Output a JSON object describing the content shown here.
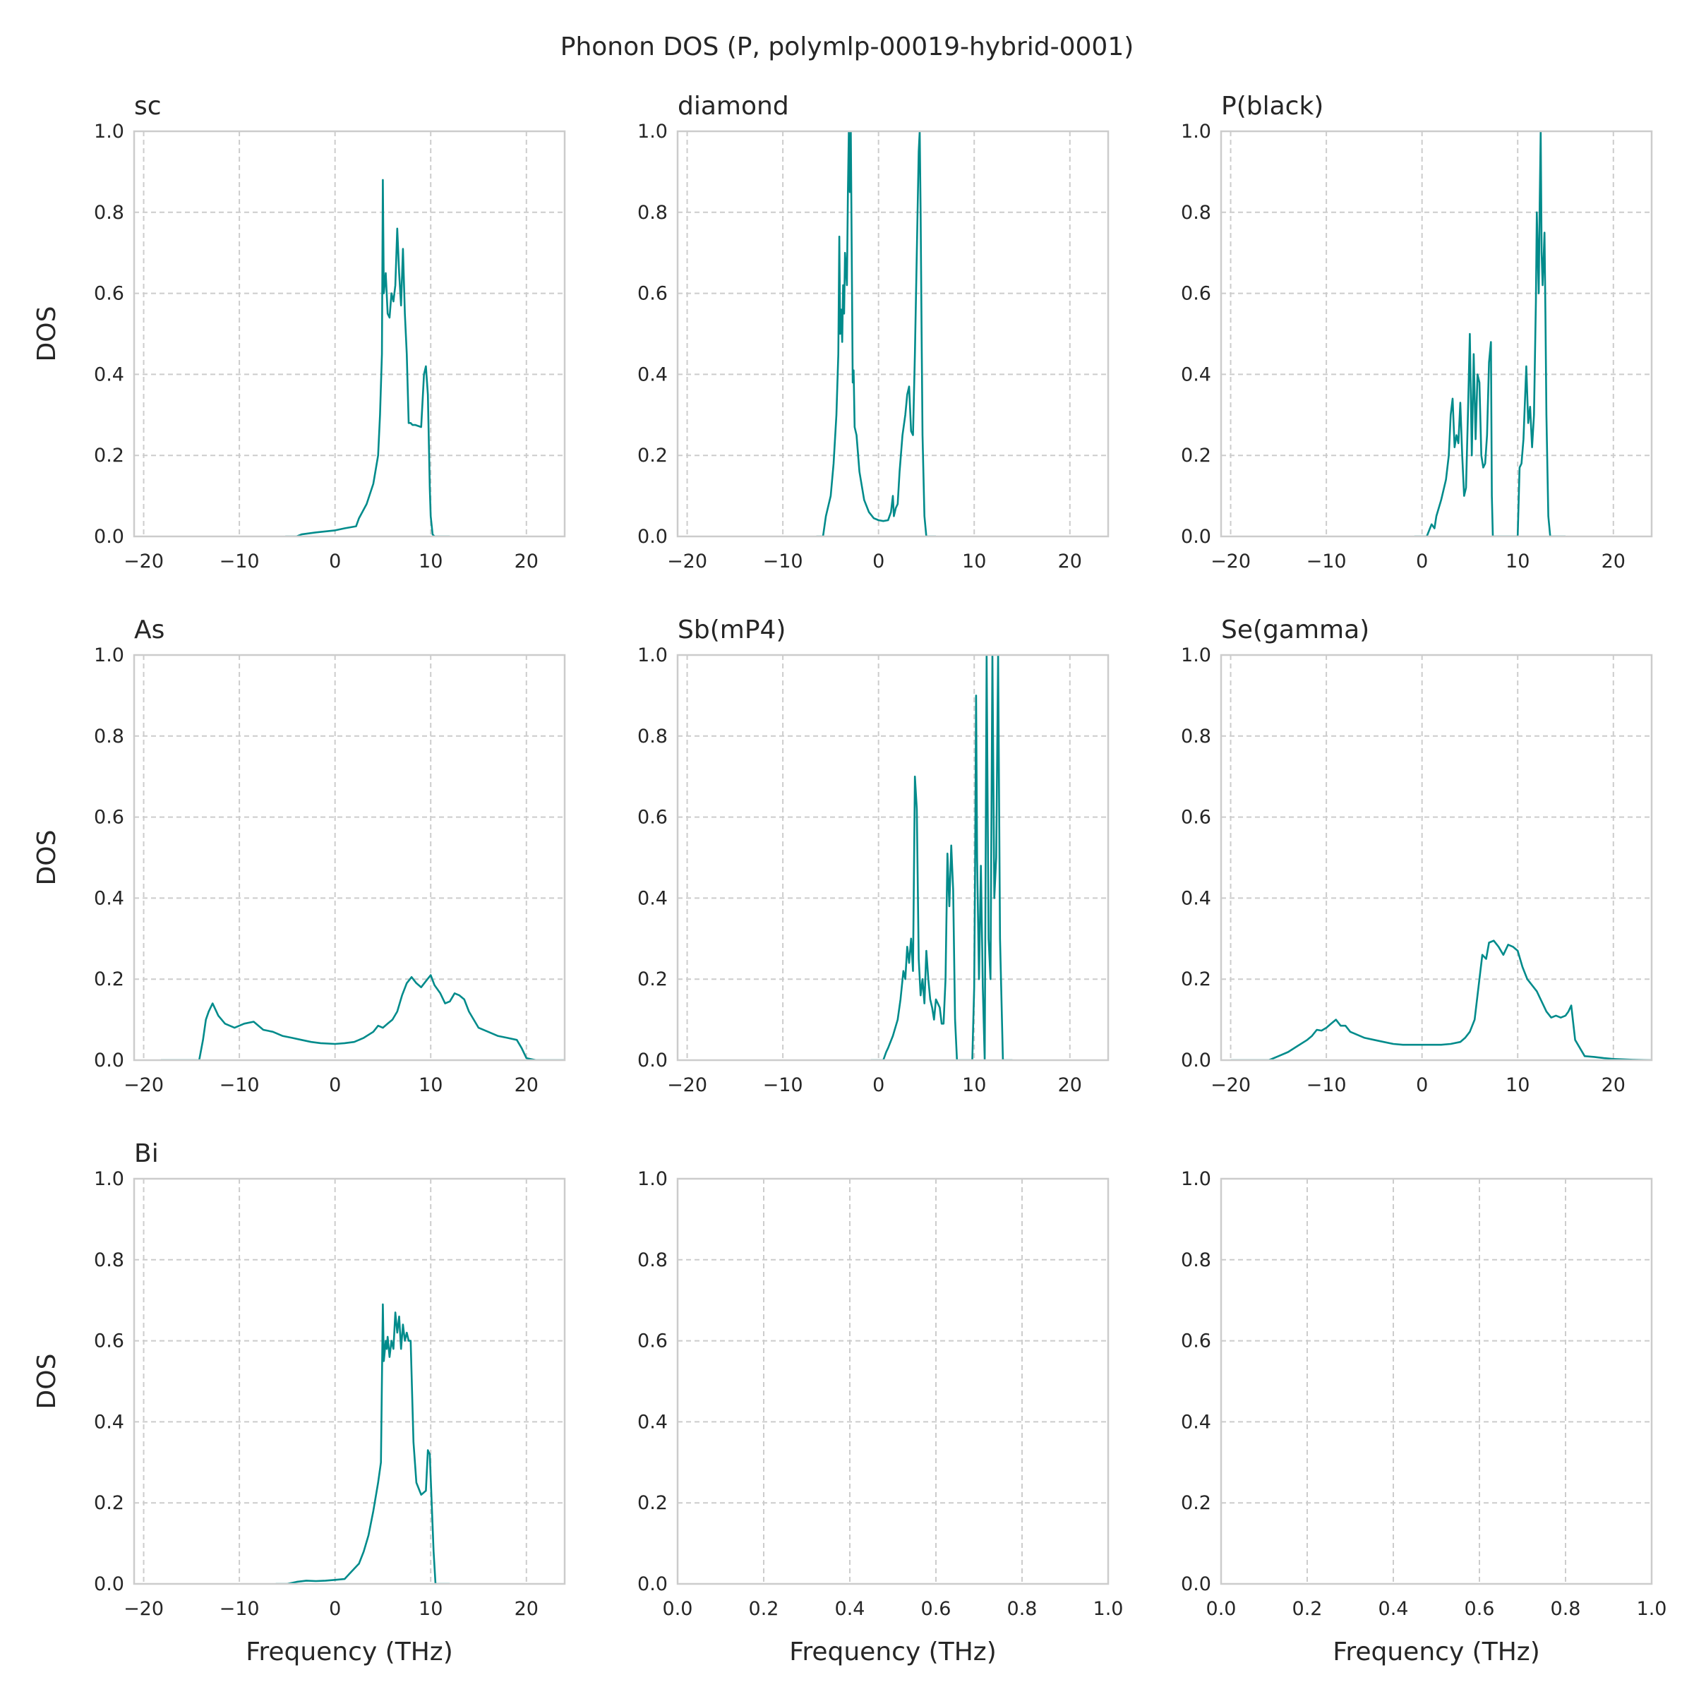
{
  "figure": {
    "title": "Phonon DOS (P, polymlp-00019-hybrid-0001)",
    "line_color": "#008b8b",
    "grid_color": "#cccccc",
    "frame_color": "#cccccc"
  },
  "chart_data": [
    {
      "type": "line",
      "title": "sc",
      "xlabel": "",
      "ylabel": "DOS",
      "xlim": [
        -21,
        24
      ],
      "ylim": [
        0,
        1.0
      ],
      "xticks": [
        -20,
        -10,
        0,
        10,
        20
      ],
      "yticks": [
        0.0,
        0.2,
        0.4,
        0.6,
        0.8,
        1.0
      ],
      "xtick_labels": [
        "−20",
        "−10",
        "0",
        "10",
        "20"
      ],
      "ytick_labels": [
        "0.0",
        "0.2",
        "0.4",
        "0.6",
        "0.8",
        "1.0"
      ],
      "grid": true,
      "series": [
        {
          "x": [
            -5.2,
            -4,
            -3.5,
            -2,
            0,
            1,
            2.2,
            2.5,
            3.3,
            4,
            4.5,
            4.7,
            4.9,
            5.0,
            5.1,
            5.3,
            5.5,
            5.7,
            5.9,
            6.1,
            6.3,
            6.5,
            6.7,
            6.9,
            7.1,
            7.3,
            7.5,
            7.7,
            7.9,
            8.1,
            8.4,
            9.0,
            9.3,
            9.5,
            9.7,
            9.9,
            10.0,
            10.2,
            10.4,
            12.0
          ],
          "y": [
            0.0,
            0.0,
            0.005,
            0.01,
            0.015,
            0.02,
            0.025,
            0.045,
            0.08,
            0.13,
            0.2,
            0.3,
            0.45,
            0.88,
            0.6,
            0.65,
            0.55,
            0.54,
            0.6,
            0.58,
            0.62,
            0.76,
            0.65,
            0.57,
            0.71,
            0.55,
            0.45,
            0.28,
            0.28,
            0.275,
            0.275,
            0.27,
            0.4,
            0.42,
            0.35,
            0.12,
            0.05,
            0.005,
            0.0,
            0.0
          ]
        }
      ]
    },
    {
      "type": "line",
      "title": "diamond",
      "xlabel": "",
      "ylabel": "",
      "xlim": [
        -21,
        24
      ],
      "ylim": [
        0,
        1.0
      ],
      "xticks": [
        -20,
        -10,
        0,
        10,
        20
      ],
      "yticks": [
        0.0,
        0.2,
        0.4,
        0.6,
        0.8,
        1.0
      ],
      "xtick_labels": [
        "−20",
        "−10",
        "0",
        "10",
        "20"
      ],
      "ytick_labels": [
        "0.0",
        "0.2",
        "0.4",
        "0.6",
        "0.8",
        "1.0"
      ],
      "grid": true,
      "series": [
        {
          "x": [
            -6.5,
            -5.8,
            -5.5,
            -5,
            -4.7,
            -4.4,
            -4.2,
            -4.1,
            -4.0,
            -3.9,
            -3.8,
            -3.7,
            -3.6,
            -3.5,
            -3.3,
            -3.2,
            -3.1,
            -3.0,
            -2.9,
            -2.8,
            -2.7,
            -2.6,
            -2.5,
            -2.3,
            -2.0,
            -1.5,
            -1,
            -0.5,
            0,
            0.5,
            1.0,
            1.3,
            1.5,
            1.6,
            1.8,
            2.0,
            2.2,
            2.5,
            2.8,
            3.0,
            3.2,
            3.4,
            3.6,
            3.8,
            4.0,
            4.2,
            4.3,
            4.4,
            4.5,
            4.6,
            4.8,
            5.0,
            5.3,
            6.0
          ],
          "y": [
            0.0,
            0.0,
            0.05,
            0.1,
            0.18,
            0.3,
            0.45,
            0.74,
            0.5,
            0.56,
            0.48,
            0.62,
            0.55,
            0.7,
            0.62,
            0.85,
            1.0,
            0.85,
            1.0,
            0.7,
            0.38,
            0.41,
            0.27,
            0.25,
            0.16,
            0.09,
            0.06,
            0.045,
            0.04,
            0.038,
            0.04,
            0.06,
            0.1,
            0.05,
            0.07,
            0.08,
            0.16,
            0.25,
            0.3,
            0.35,
            0.37,
            0.26,
            0.25,
            0.45,
            0.7,
            0.95,
            1.0,
            0.8,
            0.5,
            0.25,
            0.05,
            0.0,
            0.0,
            0.0
          ]
        }
      ]
    },
    {
      "type": "line",
      "title": "P(black)",
      "xlabel": "",
      "ylabel": "",
      "xlim": [
        -21,
        24
      ],
      "ylim": [
        0,
        1.0
      ],
      "xticks": [
        -20,
        -10,
        0,
        10,
        20
      ],
      "yticks": [
        0.0,
        0.2,
        0.4,
        0.6,
        0.8,
        1.0
      ],
      "xtick_labels": [
        "−20",
        "−10",
        "0",
        "10",
        "20"
      ],
      "ytick_labels": [
        "0.0",
        "0.2",
        "0.4",
        "0.6",
        "0.8",
        "1.0"
      ],
      "grid": true,
      "series": [
        {
          "x": [
            -0.8,
            0.5,
            1.0,
            1.3,
            1.5,
            2.0,
            2.5,
            2.8,
            3.0,
            3.2,
            3.4,
            3.6,
            3.8,
            4.0,
            4.2,
            4.4,
            4.6,
            4.8,
            5.0,
            5.2,
            5.4,
            5.6,
            5.8,
            6.0,
            6.2,
            6.4,
            6.6,
            6.8,
            7.0,
            7.2,
            7.3,
            7.4,
            7.6,
            8.0,
            10.0,
            10.2,
            10.4,
            10.6,
            10.9,
            11.1,
            11.3,
            11.5,
            11.7,
            11.9,
            12.0,
            12.2,
            12.3,
            12.4,
            12.5,
            12.6,
            12.7,
            12.8,
            12.9,
            13.0,
            13.2,
            13.4,
            14.0,
            15.0
          ],
          "y": [
            0.0,
            0.0,
            0.03,
            0.02,
            0.05,
            0.09,
            0.14,
            0.2,
            0.3,
            0.34,
            0.22,
            0.25,
            0.23,
            0.33,
            0.2,
            0.1,
            0.12,
            0.3,
            0.5,
            0.2,
            0.45,
            0.24,
            0.4,
            0.38,
            0.2,
            0.17,
            0.18,
            0.25,
            0.43,
            0.48,
            0.1,
            0.0,
            0.0,
            0.0,
            0.0,
            0.17,
            0.18,
            0.24,
            0.42,
            0.28,
            0.32,
            0.22,
            0.3,
            0.58,
            0.8,
            0.6,
            0.82,
            1.0,
            0.7,
            0.62,
            0.68,
            0.75,
            0.55,
            0.3,
            0.05,
            0.0,
            0.0,
            0.0
          ]
        }
      ]
    },
    {
      "type": "line",
      "title": "As",
      "xlabel": "",
      "ylabel": "DOS",
      "xlim": [
        -21,
        24
      ],
      "ylim": [
        0,
        1.0
      ],
      "xticks": [
        -20,
        -10,
        0,
        10,
        20
      ],
      "yticks": [
        0.0,
        0.2,
        0.4,
        0.6,
        0.8,
        1.0
      ],
      "xtick_labels": [
        "−20",
        "−10",
        "0",
        "10",
        "20"
      ],
      "ytick_labels": [
        "0.0",
        "0.2",
        "0.4",
        "0.6",
        "0.8",
        "1.0"
      ],
      "grid": true,
      "series": [
        {
          "x": [
            -18.2,
            -14.2,
            -13.8,
            -13.5,
            -13.2,
            -12.8,
            -12.2,
            -11.5,
            -10.5,
            -9.5,
            -8.5,
            -7.5,
            -6.5,
            -5.5,
            -4.5,
            -3.5,
            -2.5,
            -1.5,
            0,
            1,
            2,
            3,
            4,
            4.5,
            5,
            5.5,
            6,
            6.5,
            7,
            7.5,
            8,
            8.5,
            9,
            9.5,
            10,
            10.4,
            11,
            11.5,
            12,
            12.5,
            13,
            13.5,
            14,
            14.5,
            15,
            16,
            17,
            18,
            19,
            19.5,
            20,
            21,
            24
          ],
          "y": [
            0.0,
            0.0,
            0.05,
            0.1,
            0.12,
            0.14,
            0.11,
            0.09,
            0.08,
            0.09,
            0.095,
            0.075,
            0.07,
            0.06,
            0.055,
            0.05,
            0.045,
            0.042,
            0.04,
            0.042,
            0.045,
            0.055,
            0.07,
            0.085,
            0.08,
            0.09,
            0.1,
            0.12,
            0.16,
            0.19,
            0.205,
            0.19,
            0.18,
            0.195,
            0.21,
            0.185,
            0.165,
            0.14,
            0.145,
            0.165,
            0.16,
            0.15,
            0.12,
            0.1,
            0.08,
            0.07,
            0.06,
            0.055,
            0.05,
            0.03,
            0.005,
            0.0,
            0.0
          ]
        }
      ]
    },
    {
      "type": "line",
      "title": "Sb(mP4)",
      "xlabel": "",
      "ylabel": "",
      "xlim": [
        -21,
        24
      ],
      "ylim": [
        0,
        1.0
      ],
      "xticks": [
        -20,
        -10,
        0,
        10,
        20
      ],
      "yticks": [
        0.0,
        0.2,
        0.4,
        0.6,
        0.8,
        1.0
      ],
      "xtick_labels": [
        "−20",
        "−10",
        "0",
        "10",
        "20"
      ],
      "ytick_labels": [
        "0.0",
        "0.2",
        "0.4",
        "0.6",
        "0.8",
        "1.0"
      ],
      "grid": true,
      "series": [
        {
          "x": [
            -0.8,
            0.5,
            0.8,
            1.0,
            1.5,
            2.0,
            2.3,
            2.6,
            2.8,
            3.0,
            3.2,
            3.4,
            3.6,
            3.8,
            4.0,
            4.2,
            4.4,
            4.6,
            4.8,
            5.0,
            5.2,
            5.4,
            5.6,
            5.8,
            6.0,
            6.2,
            6.4,
            6.6,
            6.8,
            7.0,
            7.2,
            7.4,
            7.6,
            7.8,
            8.0,
            8.2,
            9.8,
            10.0,
            10.1,
            10.2,
            10.3,
            10.5,
            10.7,
            10.9,
            11.1,
            11.3,
            11.5,
            11.7,
            11.9,
            12.1,
            12.3,
            12.5,
            12.7,
            13.0,
            14.0
          ],
          "y": [
            0.0,
            0.0,
            0.02,
            0.03,
            0.06,
            0.1,
            0.15,
            0.22,
            0.2,
            0.28,
            0.24,
            0.3,
            0.22,
            0.7,
            0.62,
            0.25,
            0.16,
            0.2,
            0.14,
            0.27,
            0.2,
            0.15,
            0.13,
            0.1,
            0.15,
            0.14,
            0.13,
            0.09,
            0.09,
            0.2,
            0.51,
            0.38,
            0.53,
            0.42,
            0.1,
            0.0,
            0.0,
            0.18,
            0.5,
            0.9,
            0.5,
            0.2,
            0.48,
            0.18,
            0.0,
            1.0,
            0.3,
            0.2,
            1.0,
            0.4,
            0.5,
            1.0,
            0.3,
            0.0,
            0.0
          ]
        }
      ]
    },
    {
      "type": "line",
      "title": "Se(gamma)",
      "xlabel": "",
      "ylabel": "",
      "xlim": [
        -21,
        24
      ],
      "ylim": [
        0,
        1.0
      ],
      "xticks": [
        -20,
        -10,
        0,
        10,
        20
      ],
      "yticks": [
        0.0,
        0.2,
        0.4,
        0.6,
        0.8,
        1.0
      ],
      "xtick_labels": [
        "−20",
        "−10",
        "0",
        "10",
        "20"
      ],
      "ytick_labels": [
        "0.0",
        "0.2",
        "0.4",
        "0.6",
        "0.8",
        "1.0"
      ],
      "grid": true,
      "series": [
        {
          "x": [
            -20,
            -16,
            -15,
            -14,
            -13,
            -12,
            -11.5,
            -11,
            -10.5,
            -10,
            -9.5,
            -9,
            -8.5,
            -8,
            -7.5,
            -7,
            -6,
            -5,
            -4,
            -3,
            -2,
            -1,
            0,
            1,
            2,
            3,
            4,
            4.5,
            5,
            5.5,
            6,
            6.3,
            6.7,
            7,
            7.5,
            8,
            8.5,
            9,
            9.5,
            10,
            10.5,
            11,
            12,
            13,
            13.5,
            14,
            14.5,
            15,
            15.3,
            15.6,
            16,
            17,
            18,
            19,
            20,
            22,
            24
          ],
          "y": [
            0.0,
            0.0,
            0.01,
            0.02,
            0.035,
            0.05,
            0.06,
            0.075,
            0.073,
            0.08,
            0.09,
            0.1,
            0.085,
            0.085,
            0.07,
            0.065,
            0.055,
            0.05,
            0.045,
            0.04,
            0.038,
            0.038,
            0.038,
            0.038,
            0.038,
            0.04,
            0.045,
            0.055,
            0.07,
            0.1,
            0.2,
            0.26,
            0.25,
            0.29,
            0.295,
            0.28,
            0.26,
            0.285,
            0.28,
            0.27,
            0.23,
            0.2,
            0.17,
            0.12,
            0.105,
            0.11,
            0.105,
            0.11,
            0.12,
            0.135,
            0.05,
            0.01,
            0.008,
            0.005,
            0.003,
            0.001,
            0.0
          ]
        }
      ]
    },
    {
      "type": "line",
      "title": "Bi",
      "xlabel": "Frequency (THz)",
      "ylabel": "DOS",
      "xlim": [
        -21,
        24
      ],
      "ylim": [
        0,
        1.0
      ],
      "xticks": [
        -20,
        -10,
        0,
        10,
        20
      ],
      "yticks": [
        0.0,
        0.2,
        0.4,
        0.6,
        0.8,
        1.0
      ],
      "xtick_labels": [
        "−20",
        "−10",
        "0",
        "10",
        "20"
      ],
      "ytick_labels": [
        "0.0",
        "0.2",
        "0.4",
        "0.6",
        "0.8",
        "1.0"
      ],
      "grid": true,
      "series": [
        {
          "x": [
            -6.2,
            -5,
            -4,
            -3,
            -2,
            -1,
            0,
            1,
            1.5,
            2.5,
            3,
            3.5,
            4,
            4.5,
            4.8,
            5.0,
            5.1,
            5.3,
            5.4,
            5.5,
            5.7,
            5.9,
            6.1,
            6.3,
            6.5,
            6.7,
            6.9,
            7.1,
            7.3,
            7.5,
            7.7,
            7.9,
            8.2,
            8.5,
            9.0,
            9.5,
            9.7,
            9.9,
            10.1,
            10.3,
            10.5,
            12.0
          ],
          "y": [
            0.0,
            0.0,
            0.005,
            0.008,
            0.007,
            0.008,
            0.01,
            0.012,
            0.025,
            0.05,
            0.08,
            0.12,
            0.18,
            0.25,
            0.3,
            0.69,
            0.55,
            0.6,
            0.58,
            0.61,
            0.56,
            0.6,
            0.58,
            0.67,
            0.62,
            0.66,
            0.58,
            0.64,
            0.6,
            0.62,
            0.6,
            0.6,
            0.35,
            0.25,
            0.22,
            0.23,
            0.33,
            0.32,
            0.2,
            0.08,
            0.0,
            0.0
          ]
        }
      ]
    },
    {
      "type": "line",
      "title": "",
      "xlabel": "Frequency (THz)",
      "ylabel": "",
      "xlim": [
        0,
        1.0
      ],
      "ylim": [
        0,
        1.0
      ],
      "xticks": [
        0.0,
        0.2,
        0.4,
        0.6,
        0.8,
        1.0
      ],
      "yticks": [
        0.0,
        0.2,
        0.4,
        0.6,
        0.8,
        1.0
      ],
      "xtick_labels": [
        "0.0",
        "0.2",
        "0.4",
        "0.6",
        "0.8",
        "1.0"
      ],
      "ytick_labels": [
        "0.0",
        "0.2",
        "0.4",
        "0.6",
        "0.8",
        "1.0"
      ],
      "grid": true,
      "series": []
    },
    {
      "type": "line",
      "title": "",
      "xlabel": "Frequency (THz)",
      "ylabel": "",
      "xlim": [
        0,
        1.0
      ],
      "ylim": [
        0,
        1.0
      ],
      "xticks": [
        0.0,
        0.2,
        0.4,
        0.6,
        0.8,
        1.0
      ],
      "yticks": [
        0.0,
        0.2,
        0.4,
        0.6,
        0.8,
        1.0
      ],
      "xtick_labels": [
        "0.0",
        "0.2",
        "0.4",
        "0.6",
        "0.8",
        "1.0"
      ],
      "ytick_labels": [
        "0.0",
        "0.2",
        "0.4",
        "0.6",
        "0.8",
        "1.0"
      ],
      "grid": true,
      "series": []
    }
  ]
}
